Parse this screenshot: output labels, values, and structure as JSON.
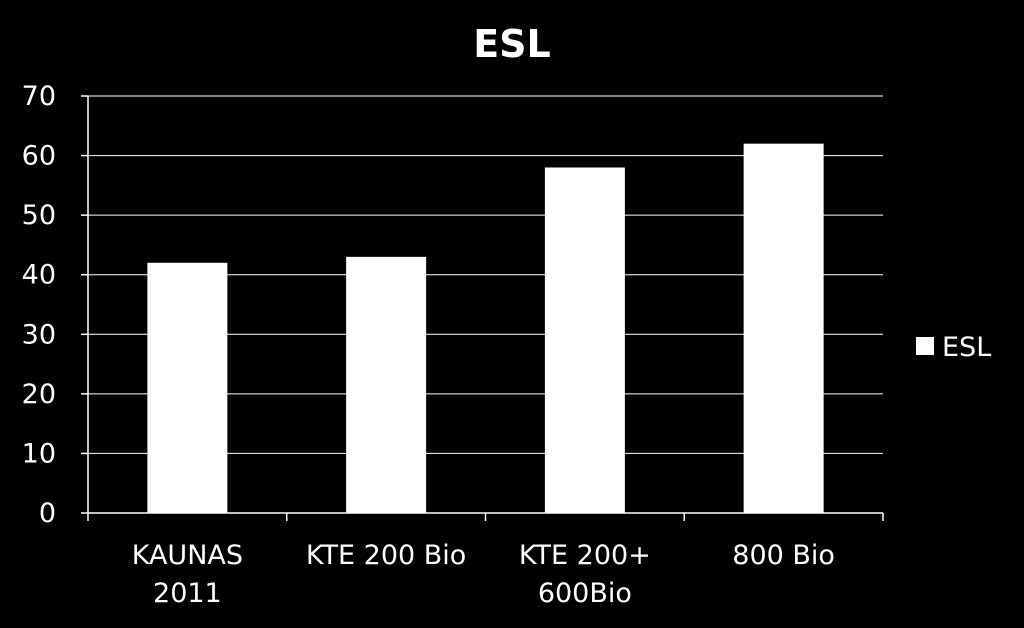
{
  "chart_data": {
    "type": "bar",
    "title": "ESL",
    "xlabel": "",
    "ylabel": "",
    "categories": [
      [
        "KAUNAS",
        "2011"
      ],
      [
        "KTE 200 Bio"
      ],
      [
        "KTE 200+",
        "600Bio"
      ],
      [
        "800 Bio"
      ]
    ],
    "series": [
      {
        "name": "ESL",
        "values": [
          42,
          43,
          58,
          62
        ],
        "color": "#ffffff"
      }
    ],
    "ylim": [
      0,
      70
    ],
    "yticks": [
      "0",
      "10",
      "20",
      "30",
      "40",
      "50",
      "60",
      "70"
    ],
    "grid": true,
    "legend": "right",
    "background": "#000000",
    "axis_color": "#ffffff"
  }
}
